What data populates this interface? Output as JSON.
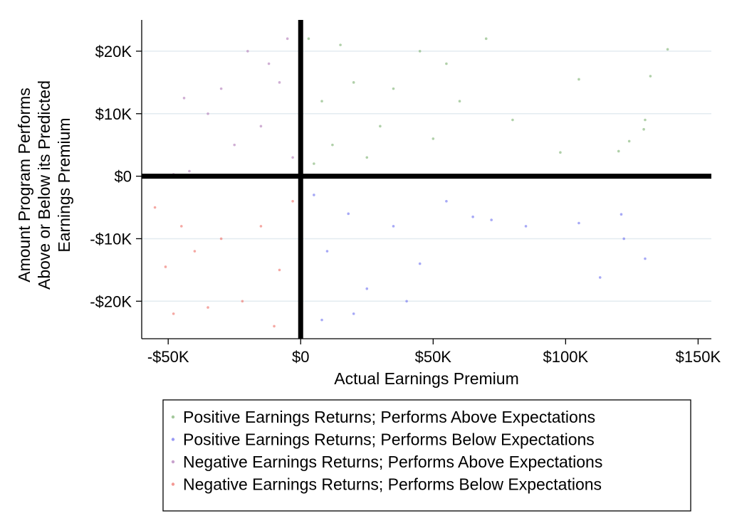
{
  "chart_data": {
    "type": "scatter",
    "title": "",
    "xlabel": "Actual Earnings Premium",
    "ylabel_lines": [
      "Amount Program Performs",
      "Above or Below its Predicted",
      "Earnings Premium"
    ],
    "xlim": [
      -60000,
      155000
    ],
    "ylim": [
      -26000,
      25000
    ],
    "x_ticks": [
      -50000,
      0,
      50000,
      100000,
      150000
    ],
    "x_tick_labels": [
      "-$50K",
      "$0",
      "$50K",
      "$100K",
      "$150K"
    ],
    "y_ticks": [
      -20000,
      -10000,
      0,
      10000,
      20000
    ],
    "y_tick_labels": [
      "-$20K",
      "-$10K",
      "$0",
      "$10K",
      "$20K"
    ],
    "grid": "horizontal",
    "reference_lines": {
      "x": 0,
      "y": 0
    },
    "legend_position": "bottom",
    "series": [
      {
        "name": "Positive Earnings Returns; Performs Above Expectations",
        "color": "#7cb070",
        "points": [
          [
            5000,
            2000
          ],
          [
            8000,
            12000
          ],
          [
            12000,
            5000
          ],
          [
            20000,
            15000
          ],
          [
            30000,
            8000
          ],
          [
            45000,
            20000
          ],
          [
            60000,
            12000
          ],
          [
            70000,
            22000
          ],
          [
            80000,
            9000
          ],
          [
            98000,
            3800
          ],
          [
            105000,
            15500
          ],
          [
            120000,
            4000
          ],
          [
            124000,
            5600
          ],
          [
            130000,
            9000
          ],
          [
            129500,
            7500
          ],
          [
            132000,
            16000
          ],
          [
            138500,
            20300
          ],
          [
            3000,
            22000
          ],
          [
            15000,
            21000
          ],
          [
            25000,
            3000
          ],
          [
            35000,
            14000
          ],
          [
            50000,
            6000
          ],
          [
            55000,
            18000
          ]
        ]
      },
      {
        "name": "Positive Earnings Returns; Performs Below Expectations",
        "color": "#6d6ff0",
        "points": [
          [
            5000,
            -3000
          ],
          [
            10000,
            -12000
          ],
          [
            18000,
            -6000
          ],
          [
            25000,
            -18000
          ],
          [
            35000,
            -8000
          ],
          [
            45000,
            -14000
          ],
          [
            55000,
            -4000
          ],
          [
            65000,
            -6500
          ],
          [
            72000,
            -7000
          ],
          [
            85000,
            -8000
          ],
          [
            105000,
            -7500
          ],
          [
            121000,
            -6100
          ],
          [
            122000,
            -10000
          ],
          [
            130000,
            -13200
          ],
          [
            113000,
            -16200
          ],
          [
            8000,
            -23000
          ],
          [
            20000,
            -22000
          ],
          [
            40000,
            -20000
          ]
        ]
      },
      {
        "name": "Negative Earnings Returns; Performs Above Expectations",
        "color": "#b07ab8",
        "points": [
          [
            -3000,
            3000
          ],
          [
            -8000,
            15000
          ],
          [
            -15000,
            8000
          ],
          [
            -20000,
            20000
          ],
          [
            -25000,
            5000
          ],
          [
            -35000,
            10000
          ],
          [
            -44000,
            12500
          ],
          [
            -48000,
            300
          ],
          [
            -42000,
            800
          ],
          [
            -5000,
            22000
          ],
          [
            -12000,
            18000
          ],
          [
            -30000,
            14000
          ]
        ]
      },
      {
        "name": "Negative Earnings Returns; Performs Below Expectations",
        "color": "#ef6e66",
        "points": [
          [
            -3000,
            -4000
          ],
          [
            -8000,
            -15000
          ],
          [
            -15000,
            -8000
          ],
          [
            -22000,
            -20000
          ],
          [
            -30000,
            -10000
          ],
          [
            -40000,
            -12000
          ],
          [
            -51000,
            -14500
          ],
          [
            -55000,
            -5000
          ],
          [
            -48000,
            -22000
          ],
          [
            -45000,
            -8000
          ],
          [
            -10000,
            -24000
          ],
          [
            -35000,
            -21000
          ]
        ]
      }
    ]
  }
}
